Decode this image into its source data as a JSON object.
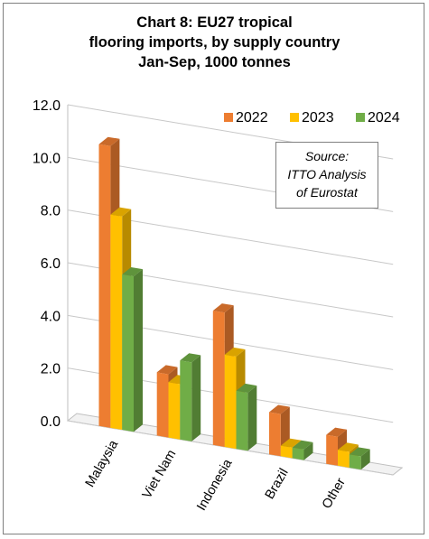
{
  "chart_data": {
    "type": "bar",
    "title_lines": [
      "Chart 8: EU27 tropical",
      "flooring imports, by supply country",
      "Jan-Sep, 1000 tonnes"
    ],
    "categories": [
      "Malaysia",
      "Viet Nam",
      "Indonesia",
      "Brazil",
      "Other"
    ],
    "series": [
      {
        "name": "2022",
        "color": "#ed7d31",
        "values": [
          10.7,
          2.4,
          5.1,
          1.6,
          1.1
        ]
      },
      {
        "name": "2023",
        "color": "#ffc000",
        "values": [
          8.1,
          2.1,
          3.5,
          0.4,
          0.6
        ]
      },
      {
        "name": "2024",
        "color": "#70ad47",
        "values": [
          5.9,
          3.0,
          2.2,
          0.4,
          0.5
        ]
      }
    ],
    "y_ticks": [
      "0.0",
      "2.0",
      "4.0",
      "6.0",
      "8.0",
      "10.0",
      "12.0"
    ],
    "ylim": [
      0,
      12
    ],
    "grid": true,
    "legend_position": "top-right",
    "annotation_lines": [
      "Source:",
      "ITTO Analysis",
      "of Eurostat"
    ]
  }
}
